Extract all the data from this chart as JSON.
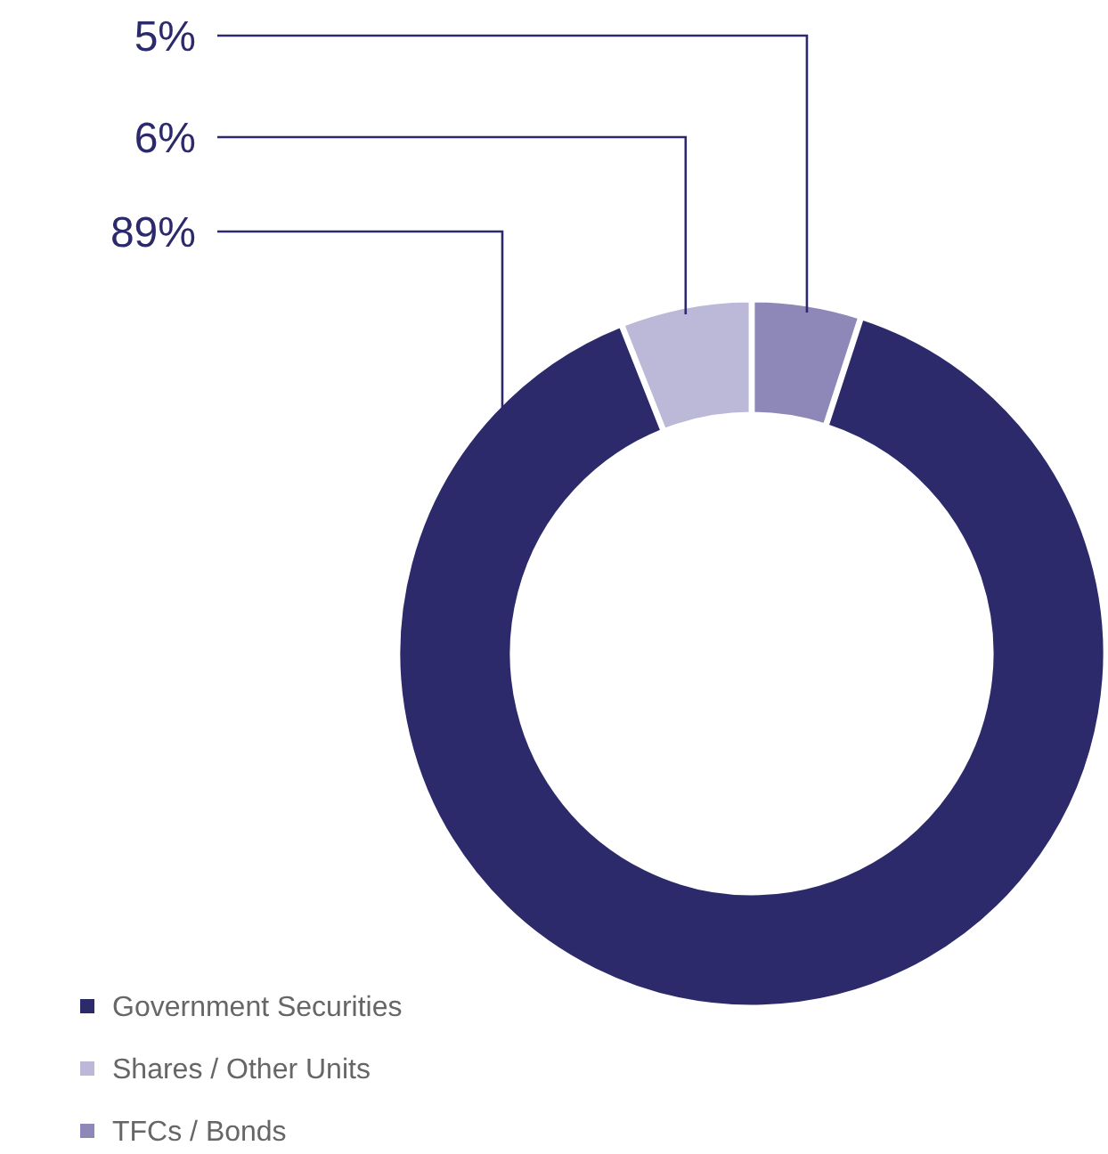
{
  "chart_data": {
    "type": "donut",
    "categories": [
      "Government Securities",
      "Shares / Other Units",
      "TFCs / Bonds"
    ],
    "values": [
      89,
      6,
      5
    ],
    "colors": [
      "#2c2a6b",
      "#bcb9d8",
      "#8e88b8"
    ],
    "value_labels": [
      "89%",
      "6%",
      "5%"
    ],
    "legend": "bottom left"
  }
}
